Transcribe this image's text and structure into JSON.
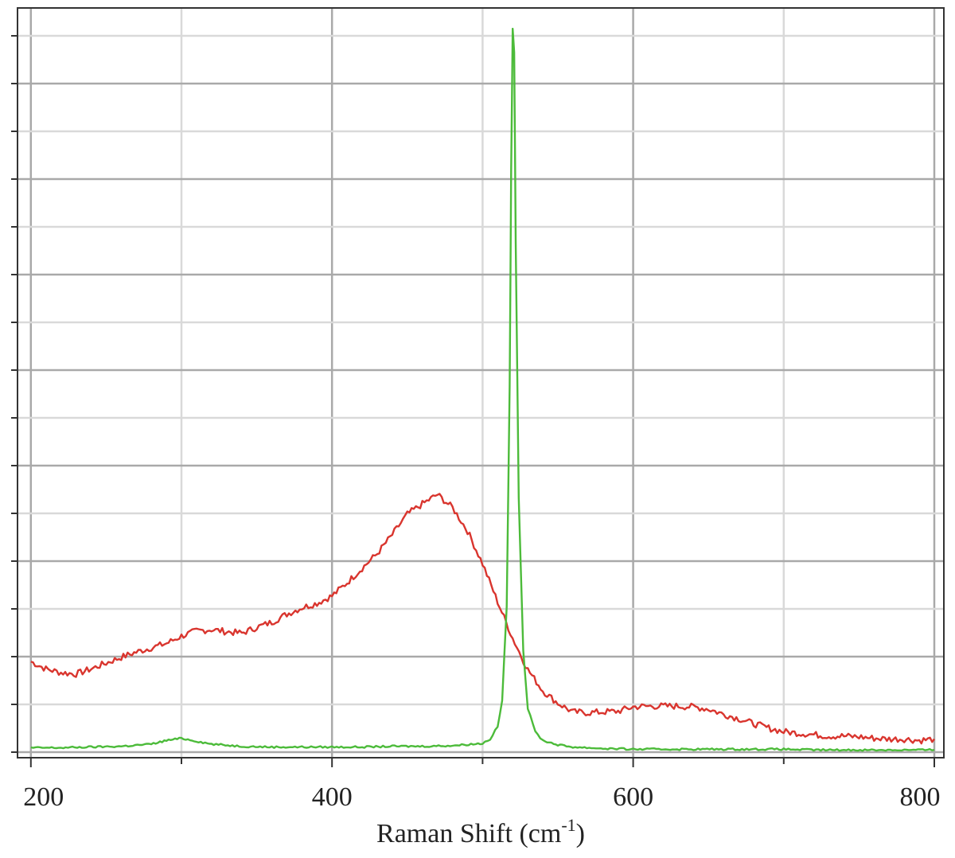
{
  "chart_data": {
    "type": "line",
    "title": "",
    "xlabel": {
      "text": "Raman Shift (cm",
      "superscript": "-1",
      "suffix": ")"
    },
    "ylabel": "",
    "xlim": [
      198,
      800
    ],
    "ylim": [
      0,
      100
    ],
    "x_ticks": [
      200,
      400,
      600,
      800
    ],
    "x_tick_labels": [
      "200",
      "400",
      "600",
      "800"
    ],
    "x_minor_ticks": [
      300,
      500,
      700
    ],
    "y_tick_count": 16,
    "y_tick_labels": [],
    "grid": true,
    "colors": {
      "red_series": "#d9352e",
      "green_series": "#4cbb3a",
      "grid_major": "#a9a9a9",
      "grid_minor": "#d9d9d9",
      "axis": "#333333"
    },
    "series": [
      {
        "color": "#d9352e",
        "x": [
          200,
          210,
          220,
          230,
          240,
          250,
          260,
          270,
          280,
          290,
          300,
          310,
          320,
          330,
          340,
          350,
          360,
          370,
          380,
          390,
          400,
          410,
          420,
          430,
          440,
          450,
          460,
          470,
          480,
          490,
          500,
          510,
          520,
          530,
          540,
          550,
          560,
          570,
          580,
          590,
          600,
          610,
          620,
          630,
          640,
          650,
          660,
          670,
          680,
          690,
          700,
          710,
          720,
          730,
          740,
          750,
          760,
          770,
          780,
          790,
          800
        ],
        "y": [
          12.4,
          11.4,
          10.9,
          10.7,
          11.4,
          12.2,
          13.0,
          13.7,
          14.3,
          14.9,
          15.9,
          16.6,
          16.8,
          16.5,
          16.3,
          17.1,
          17.8,
          18.9,
          19.8,
          20.4,
          21.4,
          23.2,
          25.2,
          27.2,
          29.8,
          32.6,
          34.0,
          35.3,
          33.5,
          30.3,
          25.8,
          20.6,
          15.6,
          11.3,
          8.4,
          6.7,
          5.5,
          5.4,
          5.5,
          5.6,
          6.2,
          6.3,
          6.3,
          6.3,
          6.2,
          5.9,
          5.2,
          4.6,
          3.9,
          3.3,
          2.8,
          2.6,
          2.4,
          2.2,
          2.2,
          2.1,
          1.9,
          1.8,
          1.8,
          1.6,
          1.8
        ]
      },
      {
        "color": "#4cbb3a",
        "x": [
          200,
          220,
          240,
          260,
          280,
          290,
          300,
          310,
          320,
          340,
          360,
          380,
          400,
          420,
          440,
          460,
          480,
          500,
          505,
          510,
          513,
          516,
          518,
          519,
          520,
          521,
          522,
          524,
          527,
          530,
          535,
          540,
          550,
          560,
          580,
          600,
          620,
          640,
          660,
          680,
          700,
          720,
          740,
          760,
          780,
          800
        ],
        "y": [
          0.6,
          0.6,
          0.7,
          0.8,
          1.1,
          1.6,
          1.9,
          1.5,
          1.1,
          0.8,
          0.7,
          0.7,
          0.7,
          0.7,
          0.8,
          0.8,
          0.9,
          1.2,
          1.8,
          3.5,
          7.0,
          20.0,
          50.0,
          80.0,
          99.0,
          96.0,
          70.0,
          35.0,
          14.0,
          6.0,
          2.8,
          1.6,
          1.0,
          0.7,
          0.5,
          0.4,
          0.4,
          0.4,
          0.4,
          0.4,
          0.4,
          0.3,
          0.3,
          0.3,
          0.3,
          0.3
        ]
      }
    ]
  }
}
